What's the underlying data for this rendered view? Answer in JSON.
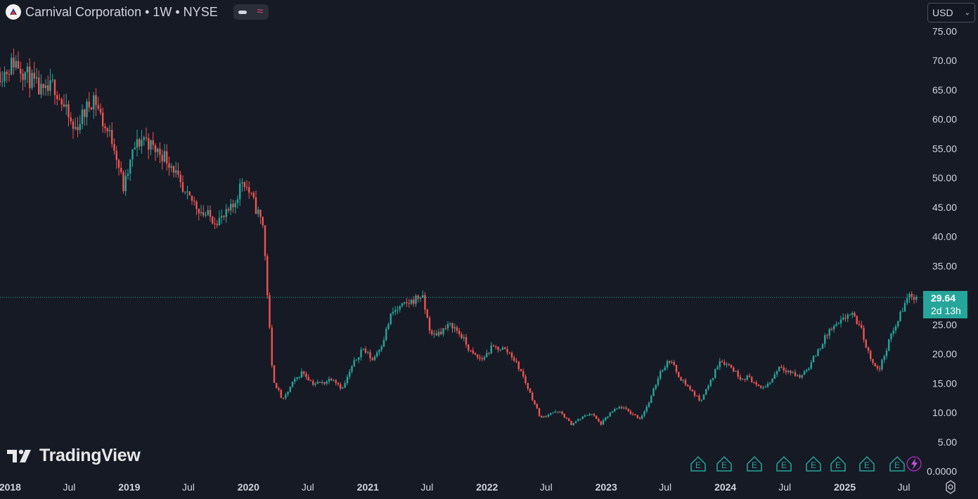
{
  "header": {
    "title": "Carnival Corporation • 1W • NYSE",
    "currency": "USD"
  },
  "watermark": "TradingView",
  "price_label": {
    "price": "29.64",
    "countdown": "2d 13h"
  },
  "colors": {
    "bg": "#161a25",
    "up": "#26a69a",
    "down": "#ef5350",
    "text": "#d1d4dc"
  },
  "chart_data": {
    "type": "candlestick",
    "x_axis_labels": [
      "2018",
      "Jul",
      "2019",
      "Jul",
      "2020",
      "Jul",
      "2021",
      "Jul",
      "2022",
      "Jul",
      "2023",
      "Jul",
      "2024",
      "Jul",
      "2025",
      "Jul"
    ],
    "y_axis_labels": [
      "75.00",
      "70.00",
      "65.00",
      "60.00",
      "55.00",
      "50.00",
      "45.00",
      "40.00",
      "35.00",
      "30.00",
      "25.00",
      "20.00",
      "15.00",
      "10.00",
      "5.00",
      "0.0000"
    ],
    "ylim": [
      0,
      75
    ],
    "last_price": 29.64,
    "earnings_markers": [
      "E",
      "E",
      "E",
      "E",
      "E",
      "E",
      "E",
      "E"
    ],
    "approx_weekly_close_path": [
      [
        "2017-12",
        68
      ],
      [
        "2018-01",
        70
      ],
      [
        "2018-02",
        68
      ],
      [
        "2018-03",
        66
      ],
      [
        "2018-04",
        64
      ],
      [
        "2018-05",
        66
      ],
      [
        "2018-06",
        62
      ],
      [
        "2018-07",
        58
      ],
      [
        "2018-08",
        61
      ],
      [
        "2018-09",
        64
      ],
      [
        "2018-10",
        59
      ],
      [
        "2018-11",
        56
      ],
      [
        "2018-12",
        48
      ],
      [
        "2019-01",
        55
      ],
      [
        "2019-02",
        57
      ],
      [
        "2019-03",
        55
      ],
      [
        "2019-04",
        54
      ],
      [
        "2019-05",
        52
      ],
      [
        "2019-06",
        47
      ],
      [
        "2019-07",
        46
      ],
      [
        "2019-08",
        44
      ],
      [
        "2019-09",
        43
      ],
      [
        "2019-10",
        43
      ],
      [
        "2019-11",
        45
      ],
      [
        "2019-12",
        50
      ],
      [
        "2020-01",
        46
      ],
      [
        "2020-02",
        42
      ],
      [
        "2020-03",
        16
      ],
      [
        "2020-04",
        12
      ],
      [
        "2020-05",
        15
      ],
      [
        "2020-06",
        17
      ],
      [
        "2020-07",
        15
      ],
      [
        "2020-08",
        15
      ],
      [
        "2020-09",
        16
      ],
      [
        "2020-10",
        14
      ],
      [
        "2020-11",
        18
      ],
      [
        "2020-12",
        21
      ],
      [
        "2021-01",
        19
      ],
      [
        "2021-02",
        22
      ],
      [
        "2021-03",
        27
      ],
      [
        "2021-04",
        28
      ],
      [
        "2021-05",
        29
      ],
      [
        "2021-06",
        30
      ],
      [
        "2021-07",
        23
      ],
      [
        "2021-08",
        24
      ],
      [
        "2021-09",
        25
      ],
      [
        "2021-10",
        23
      ],
      [
        "2021-11",
        20
      ],
      [
        "2021-12",
        19
      ],
      [
        "2022-01",
        21
      ],
      [
        "2022-02",
        21
      ],
      [
        "2022-03",
        20
      ],
      [
        "2022-04",
        17
      ],
      [
        "2022-05",
        13
      ],
      [
        "2022-06",
        9
      ],
      [
        "2022-07",
        10
      ],
      [
        "2022-08",
        10
      ],
      [
        "2022-09",
        8
      ],
      [
        "2022-10",
        9
      ],
      [
        "2022-11",
        10
      ],
      [
        "2022-12",
        8
      ],
      [
        "2023-01",
        10
      ],
      [
        "2023-02",
        11
      ],
      [
        "2023-03",
        10
      ],
      [
        "2023-04",
        9
      ],
      [
        "2023-05",
        12
      ],
      [
        "2023-06",
        17
      ],
      [
        "2023-07",
        19
      ],
      [
        "2023-08",
        16
      ],
      [
        "2023-09",
        14
      ],
      [
        "2023-10",
        12
      ],
      [
        "2023-11",
        15
      ],
      [
        "2023-12",
        19
      ],
      [
        "2024-01",
        18
      ],
      [
        "2024-02",
        16
      ],
      [
        "2024-03",
        16
      ],
      [
        "2024-04",
        14
      ],
      [
        "2024-05",
        15
      ],
      [
        "2024-06",
        18
      ],
      [
        "2024-07",
        17
      ],
      [
        "2024-08",
        16
      ],
      [
        "2024-09",
        18
      ],
      [
        "2024-10",
        21
      ],
      [
        "2024-11",
        24
      ],
      [
        "2024-12",
        25
      ],
      [
        "2025-01",
        27
      ],
      [
        "2025-02",
        25
      ],
      [
        "2025-03",
        20
      ],
      [
        "2025-04",
        17
      ],
      [
        "2025-05",
        22
      ],
      [
        "2025-06",
        26
      ],
      [
        "2025-07",
        30
      ],
      [
        "2025-08",
        29.64
      ]
    ]
  }
}
